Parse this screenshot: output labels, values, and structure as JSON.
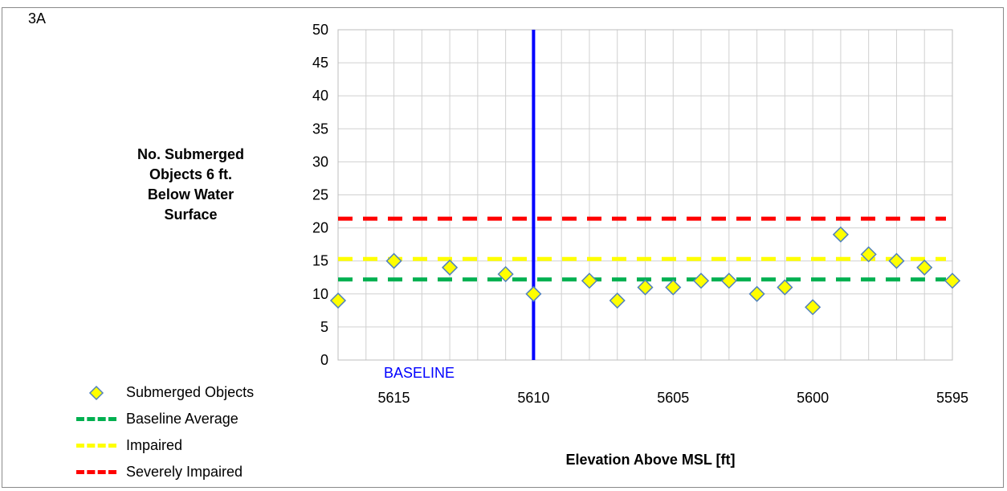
{
  "panel_label": "3A",
  "chart_data": {
    "type": "scatter",
    "title": "",
    "xlabel": "Elevation Above MSL [ft]",
    "ylabel_lines": [
      "No. Submerged",
      "Objects 6 ft.",
      "Below Water",
      "Surface"
    ],
    "xlim": [
      5617,
      5595
    ],
    "ylim": [
      0,
      50
    ],
    "y_ticks": [
      0,
      5,
      10,
      15,
      20,
      25,
      30,
      35,
      40,
      45,
      50
    ],
    "x_ticks": [
      5615,
      5610,
      5605,
      5600,
      5595
    ],
    "x_minor_step": 1,
    "grid": true,
    "legend_position": "bottom-left",
    "series": [
      {
        "name": "Submerged Objects",
        "marker": "diamond",
        "color": "#FFFF00",
        "edge_color": "#4F81BD",
        "x": [
          5617,
          5615,
          5613,
          5611,
          5610,
          5608,
          5607,
          5606,
          5605,
          5604,
          5603,
          5602,
          5601,
          5600,
          5599,
          5598,
          5597,
          5596,
          5595
        ],
        "y": [
          9,
          15,
          14,
          13,
          10,
          12,
          9,
          11,
          11,
          12,
          12,
          10,
          11,
          8,
          19,
          16,
          15,
          14,
          12
        ]
      },
      {
        "name": "Baseline Average",
        "style": "dashed",
        "color": "#00B050",
        "y": 12.2
      },
      {
        "name": "Impaired",
        "style": "dashed",
        "color": "#FFFF00",
        "y": 15.3
      },
      {
        "name": "Severely Impaired",
        "style": "dashed",
        "color": "#FF0000",
        "y": 21.4
      }
    ],
    "baseline_marker": {
      "label": "BASELINE",
      "x": 5610,
      "color": "#0000FF"
    }
  }
}
